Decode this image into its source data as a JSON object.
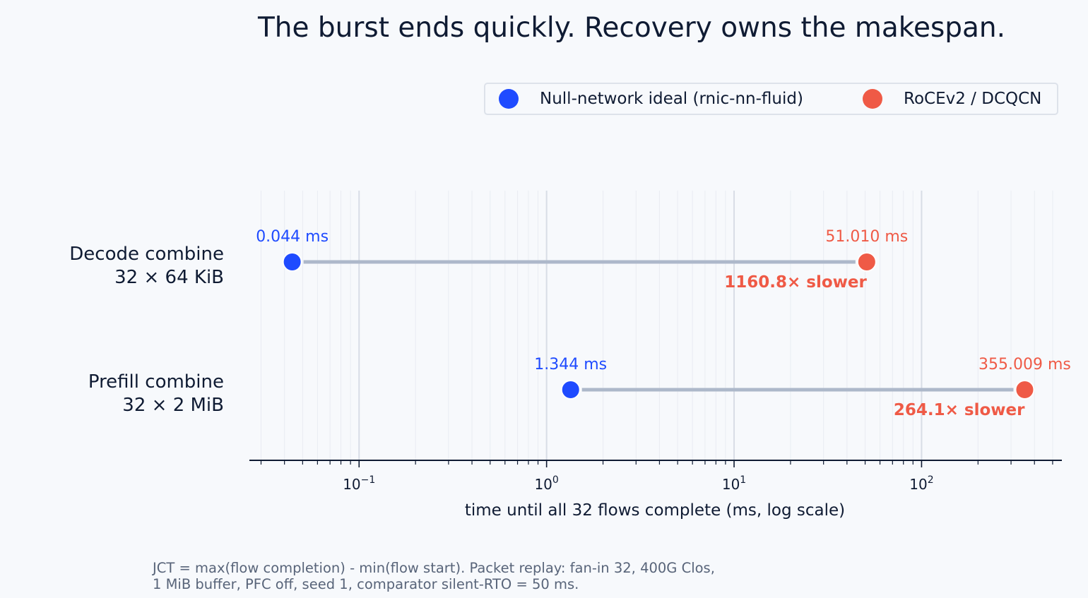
{
  "colors": {
    "background": "#f7f9fc",
    "ideal": "#1f4bff",
    "rocev2": "#ef5a46",
    "connector": "#adb8ca",
    "grid_major": "#d8dde6",
    "grid_minor": "#e9ecf2",
    "text": "#0f1b33",
    "note": "#586479"
  },
  "chart_data": {
    "type": "dumbbell",
    "title": "The burst ends quickly. Recovery owns the makespan.",
    "xlabel": "time until all 32 flows complete (ms, log scale)",
    "ylabel": "",
    "xscale": "log",
    "xlim": [
      0.026,
      560
    ],
    "grid": "vertical major and minor",
    "legend_position": "top-right",
    "x_ticks": [
      {
        "value": 0.1,
        "base": "10",
        "exp": "−1"
      },
      {
        "value": 1,
        "base": "10",
        "exp": "0"
      },
      {
        "value": 10,
        "base": "10",
        "exp": "1"
      },
      {
        "value": 100,
        "base": "10",
        "exp": "2"
      }
    ],
    "series": [
      {
        "name": "Null-network ideal (rnic-nn-fluid)",
        "color": "#1f4bff"
      },
      {
        "name": "RoCEv2 / DCQCN",
        "color": "#ef5a46"
      }
    ],
    "categories": [
      {
        "line1": "Decode combine",
        "line2": "32 × 64 KiB",
        "ideal": 0.044,
        "ideal_label": "0.044 ms",
        "rocev2": 51.01,
        "rocev2_label": "51.010 ms",
        "slowdown_label": "1160.8× slower"
      },
      {
        "line1": "Prefill combine",
        "line2": "32 × 2 MiB",
        "ideal": 1.344,
        "ideal_label": "1.344 ms",
        "rocev2": 355.009,
        "rocev2_label": "355.009 ms",
        "slowdown_label": "264.1× slower"
      }
    ]
  },
  "footnote": {
    "line1": "JCT = max(flow completion) - min(flow start). Packet replay: fan-in 32, 400G Clos,",
    "line2": "1 MiB buffer, PFC off, seed 1, comparator silent-RTO = 50 ms."
  }
}
